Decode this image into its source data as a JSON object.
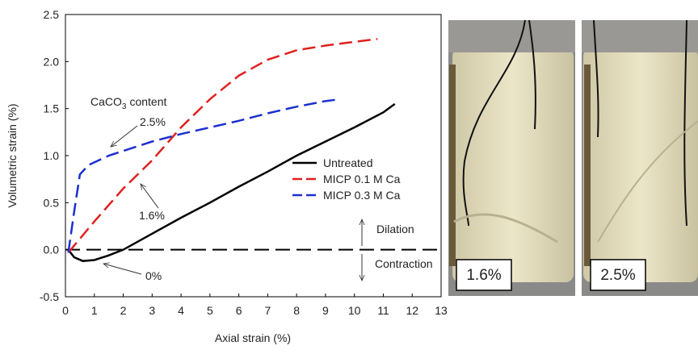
{
  "chart_data": {
    "type": "line",
    "xlabel": "Axial strain (%)",
    "ylabel": "Volumetric strain (%)",
    "xlim": [
      0,
      13
    ],
    "xticks": [
      0,
      1,
      2,
      3,
      4,
      5,
      6,
      7,
      8,
      9,
      10,
      11,
      12,
      13
    ],
    "ylim": [
      -0.5,
      2.5
    ],
    "yticks": [
      -0.5,
      {
        "value": 0,
        "label": "0.0"
      },
      0.5,
      {
        "value": 1,
        "label": "1.0"
      },
      1.5,
      {
        "value": 2,
        "label": "2.0"
      },
      2.5
    ],
    "series": [
      {
        "name": "Untreated",
        "color": "#000000",
        "style": "solid",
        "x": [
          0.1,
          0.3,
          0.6,
          1.0,
          1.5,
          2.0,
          3,
          4,
          5,
          6,
          7,
          8,
          9,
          10,
          11,
          11.4
        ],
        "values": [
          0,
          -0.08,
          -0.12,
          -0.11,
          -0.06,
          0,
          0.17,
          0.34,
          0.5,
          0.67,
          0.83,
          1.0,
          1.15,
          1.3,
          1.46,
          1.55
        ]
      },
      {
        "name": "MICP 0.1 M Ca",
        "color": "#e02020",
        "style": "dashed",
        "x": [
          0.1,
          1,
          2,
          3,
          4,
          5,
          6,
          7,
          8,
          9,
          10,
          10.8
        ],
        "values": [
          -0.03,
          0.3,
          0.65,
          0.95,
          1.3,
          1.6,
          1.85,
          2.02,
          2.12,
          2.17,
          2.21,
          2.24
        ]
      },
      {
        "name": "MICP 0.3 M Ca",
        "color": "#1c2fd0",
        "style": "dashed",
        "x": [
          0.1,
          0.3,
          0.5,
          0.8,
          1.5,
          2,
          3,
          4,
          5,
          6,
          7,
          8,
          9,
          9.5
        ],
        "values": [
          -0.03,
          0.4,
          0.8,
          0.9,
          1.0,
          1.05,
          1.15,
          1.23,
          1.3,
          1.37,
          1.45,
          1.52,
          1.58,
          1.6
        ]
      }
    ],
    "annotations": {
      "caco3": [
        "CaCO",
        "3",
        "content"
      ],
      "a25": "2.5%",
      "a16": "1.6%",
      "a0": "0%",
      "dilation": "Dilation",
      "contraction": "Contraction"
    }
  },
  "photos": [
    {
      "label": "1.6%"
    },
    {
      "label": "2.5%"
    }
  ]
}
